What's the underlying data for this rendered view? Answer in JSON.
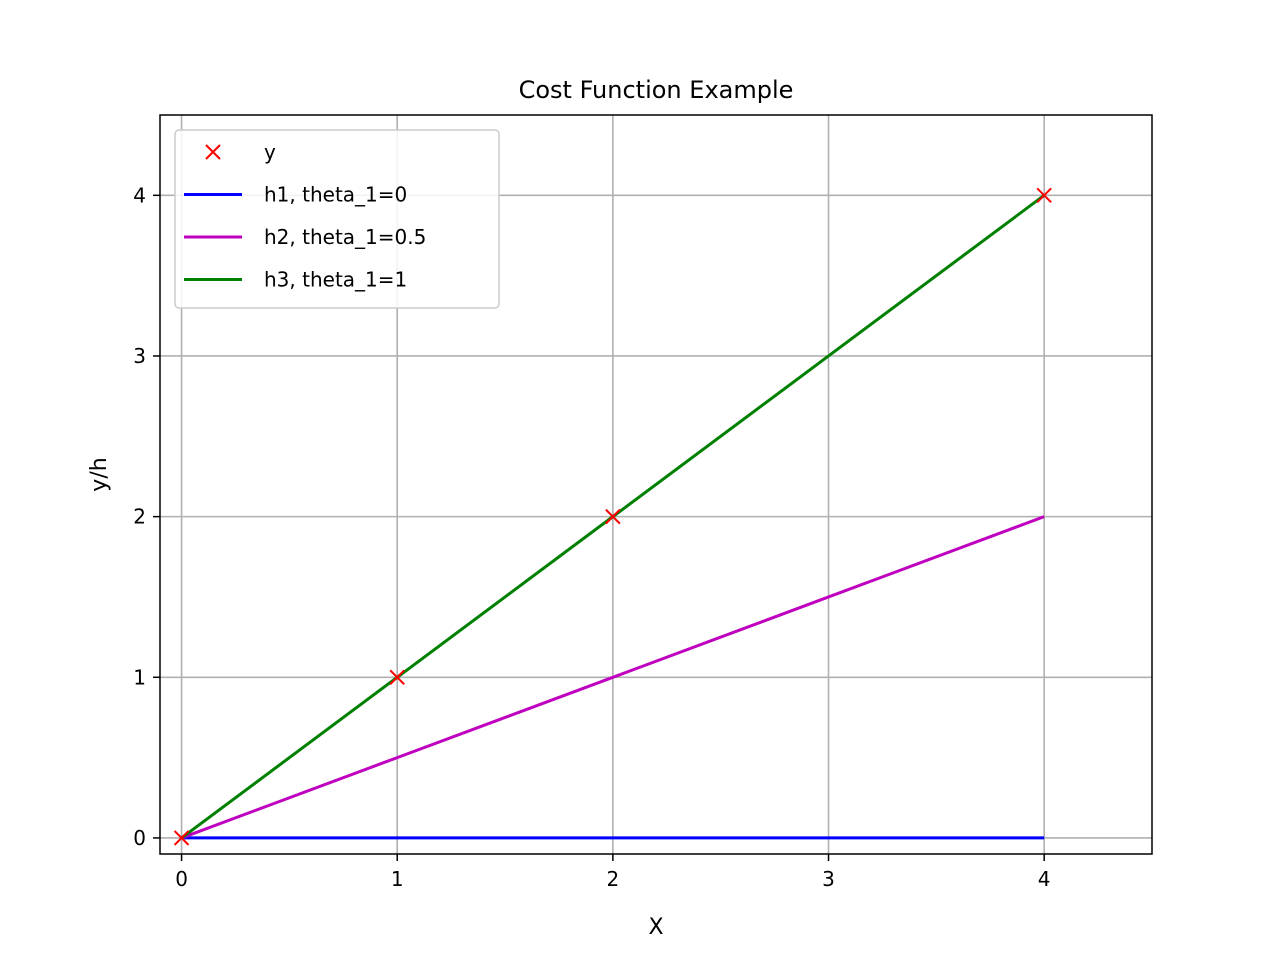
{
  "chart_data": {
    "type": "line",
    "title": "Cost Function Example",
    "xlabel": "X",
    "ylabel": "y/h",
    "xlim": [
      -0.1,
      4.5
    ],
    "ylim": [
      -0.1,
      4.5
    ],
    "xticks": [
      0,
      1,
      2,
      3,
      4
    ],
    "yticks": [
      0,
      1,
      2,
      3,
      4
    ],
    "grid": true,
    "legend_position": "top-left",
    "series": [
      {
        "name": "y",
        "kind": "markers",
        "marker": "x",
        "color": "#ff0000",
        "x": [
          0,
          1,
          2,
          4
        ],
        "y": [
          0,
          1,
          2,
          4
        ]
      },
      {
        "name": "h1, theta_1=0",
        "kind": "line",
        "color": "#0000ff",
        "x": [
          0,
          1,
          2,
          3,
          4
        ],
        "y": [
          0,
          0,
          0,
          0,
          0
        ]
      },
      {
        "name": "h2, theta_1=0.5",
        "kind": "line",
        "color": "#bf00bf",
        "x": [
          0,
          1,
          2,
          3,
          4
        ],
        "y": [
          0,
          0.5,
          1,
          1.5,
          2
        ]
      },
      {
        "name": "h3, theta_1=1",
        "kind": "line",
        "color": "#008000",
        "x": [
          0,
          1,
          2,
          3,
          4
        ],
        "y": [
          0,
          1,
          2,
          3,
          4
        ]
      }
    ]
  }
}
